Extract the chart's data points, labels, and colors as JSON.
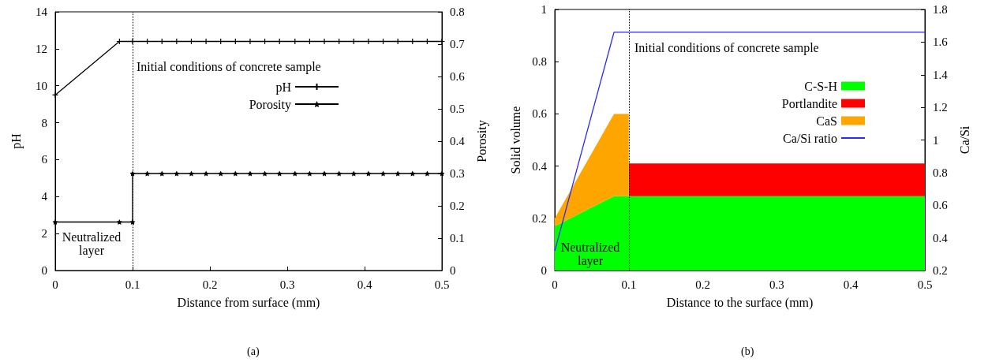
{
  "chart_data": [
    {
      "type": "line",
      "xlabel": "Distance from surface (mm)",
      "ylabel": "pH",
      "y2label": "Porosity",
      "series": [
        {
          "name": "pH",
          "color": "#000000",
          "marker": "cross",
          "x": [
            0,
            0.083,
            0.1,
            0.119,
            0.138,
            0.157,
            0.176,
            0.195,
            0.214,
            0.233,
            0.252,
            0.271,
            0.29,
            0.31,
            0.329,
            0.348,
            0.367,
            0.386,
            0.405,
            0.424,
            0.443,
            0.462,
            0.481,
            0.5
          ],
          "values": [
            9.5,
            12.4,
            12.4,
            12.4,
            12.4,
            12.4,
            12.4,
            12.4,
            12.4,
            12.4,
            12.4,
            12.4,
            12.4,
            12.4,
            12.4,
            12.4,
            12.4,
            12.4,
            12.4,
            12.4,
            12.4,
            12.4,
            12.4,
            12.4
          ]
        },
        {
          "name": "Porosity",
          "color": "#000000",
          "marker": "star",
          "axis": "y2",
          "x": [
            0,
            0.083,
            0.1,
            0.1,
            0.119,
            0.138,
            0.157,
            0.176,
            0.195,
            0.214,
            0.233,
            0.252,
            0.271,
            0.29,
            0.31,
            0.329,
            0.348,
            0.367,
            0.386,
            0.405,
            0.424,
            0.443,
            0.462,
            0.481,
            0.5
          ],
          "values": [
            0.15,
            0.15,
            0.15,
            0.3,
            0.3,
            0.3,
            0.3,
            0.3,
            0.3,
            0.3,
            0.3,
            0.3,
            0.3,
            0.3,
            0.3,
            0.3,
            0.3,
            0.3,
            0.3,
            0.3,
            0.3,
            0.3,
            0.3,
            0.3,
            0.3
          ]
        }
      ],
      "xlim": [
        0,
        0.5
      ],
      "xticks": [
        0,
        0.1,
        0.2,
        0.3,
        0.4,
        0.5
      ],
      "ylim": [
        0,
        14
      ],
      "yticks": [
        0,
        2,
        4,
        6,
        8,
        10,
        12,
        14
      ],
      "y2lim": [
        0,
        0.8
      ],
      "y2ticks": [
        0,
        0.1,
        0.2,
        0.3,
        0.4,
        0.5,
        0.6,
        0.7,
        0.8
      ],
      "ref_lines": [
        {
          "axis": "x",
          "value": 0.1,
          "color": "#000000",
          "line_style": "dotted"
        }
      ],
      "annotations": [
        "Initial conditions of concrete sample",
        "Neutralized\nlayer",
        "(a)"
      ],
      "legend": "top right",
      "grid": false
    },
    {
      "type": "area",
      "stacked": true,
      "xlabel": "Distance to the surface (mm)",
      "ylabel": "Solid volume",
      "y2label": "Ca/Si",
      "x": [
        0,
        0.08,
        0.1,
        0.1,
        0.5
      ],
      "series": [
        {
          "name": "C-S-H",
          "color": "#00ff00",
          "values": [
            0.17,
            0.285,
            0.285,
            0.285,
            0.285
          ]
        },
        {
          "name": "Portlandite",
          "color": "#ff0000",
          "values": [
            0,
            0,
            0,
            0.125,
            0.125
          ]
        },
        {
          "name": "CaS",
          "color": "#ffa500",
          "values": [
            0.03,
            0.315,
            0.315,
            0,
            0
          ]
        },
        {
          "name": "Ca/Si ratio",
          "type": "line",
          "axis": "y2",
          "color": "#2a2aff",
          "x": [
            0,
            0.08,
            0.5
          ],
          "values": [
            0.32,
            1.66,
            1.66
          ]
        }
      ],
      "xlim": [
        0,
        0.5
      ],
      "xticks": [
        0,
        0.1,
        0.2,
        0.3,
        0.4,
        0.5
      ],
      "ylim": [
        0,
        1
      ],
      "yticks": [
        0,
        0.2,
        0.4,
        0.6,
        0.8,
        1
      ],
      "y2lim": [
        0.2,
        1.8
      ],
      "y2ticks": [
        0.2,
        0.4,
        0.6,
        0.8,
        1,
        1.2,
        1.4,
        1.6,
        1.8
      ],
      "ref_lines": [
        {
          "axis": "x",
          "value": 0.1,
          "color": "#000000",
          "line_style": "dotted"
        }
      ],
      "annotations": [
        "Initial conditions of concrete sample",
        "Neutralized\nlayer",
        "(b)"
      ],
      "legend": "top right",
      "grid": false
    }
  ]
}
